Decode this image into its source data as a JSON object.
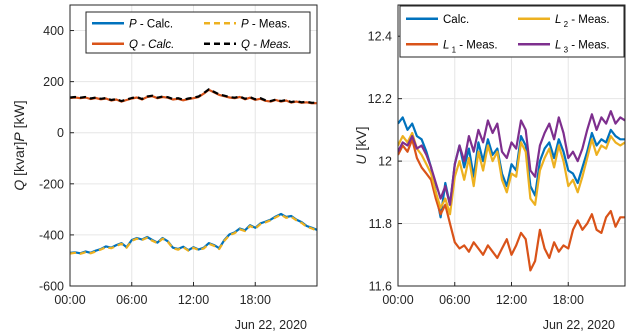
{
  "chart_data": [
    {
      "type": "line",
      "ylabel_parts": [
        "Q",
        "[kvar]",
        "P",
        "[kW]"
      ],
      "ylim": [
        -600,
        500
      ],
      "xlim": [
        0,
        24
      ],
      "yticks": [
        400,
        200,
        0,
        -200,
        -400,
        -600
      ],
      "ytick_labels": [
        "400",
        "200",
        "0",
        "-200",
        "-400",
        "-600"
      ],
      "xticks": [
        0,
        6,
        12,
        18
      ],
      "xtick_labels": [
        "00:00",
        "06:00",
        "12:00",
        "18:00"
      ],
      "date_label": "Jun 22, 2020",
      "grid": true,
      "legend_position": "top",
      "legend": [
        {
          "sym": "P",
          "text": " - Calc.",
          "sym_italic": true,
          "text_italic": false
        },
        {
          "sym": "P",
          "text": " - Meas.",
          "sym_italic": true,
          "text_italic": false
        },
        {
          "sym": "Q",
          "text": " - Calc.",
          "sym_italic": true,
          "text_italic": true
        },
        {
          "sym": "Q",
          "text": " - Meas.",
          "sym_italic": true,
          "text_italic": true
        }
      ],
      "series": [
        {
          "name": "P - Calc.",
          "color": "#0072BD",
          "dash": false,
          "x": [
            0,
            0.5,
            1,
            1.5,
            2,
            2.5,
            3,
            3.5,
            4,
            4.5,
            5,
            5.5,
            6,
            6.5,
            7,
            7.5,
            8,
            8.5,
            9,
            9.5,
            10,
            10.5,
            11,
            11.5,
            12,
            12.5,
            13,
            13.5,
            14,
            14.5,
            15,
            15.5,
            16,
            16.5,
            17,
            17.5,
            18,
            18.5,
            19,
            19.5,
            20,
            20.5,
            21,
            21.5,
            22,
            22.5,
            23,
            23.5,
            24
          ],
          "values": [
            -470,
            -468,
            -472,
            -465,
            -470,
            -462,
            -455,
            -445,
            -450,
            -440,
            -432,
            -448,
            -420,
            -412,
            -418,
            -408,
            -420,
            -430,
            -412,
            -425,
            -450,
            -455,
            -446,
            -460,
            -448,
            -457,
            -450,
            -432,
            -440,
            -452,
            -420,
            -398,
            -390,
            -375,
            -382,
            -362,
            -372,
            -355,
            -348,
            -340,
            -328,
            -318,
            -330,
            -326,
            -340,
            -350,
            -365,
            -372,
            -380
          ]
        },
        {
          "name": "P - Meas.",
          "color": "#EDB120",
          "dash": true,
          "x": [
            0,
            0.5,
            1,
            1.5,
            2,
            2.5,
            3,
            3.5,
            4,
            4.5,
            5,
            5.5,
            6,
            6.5,
            7,
            7.5,
            8,
            8.5,
            9,
            9.5,
            10,
            10.5,
            11,
            11.5,
            12,
            12.5,
            13,
            13.5,
            14,
            14.5,
            15,
            15.5,
            16,
            16.5,
            17,
            17.5,
            18,
            18.5,
            19,
            19.5,
            20,
            20.5,
            21,
            21.5,
            22,
            22.5,
            23,
            23.5,
            24
          ],
          "values": [
            -473,
            -470,
            -474,
            -468,
            -472,
            -465,
            -457,
            -448,
            -452,
            -443,
            -435,
            -450,
            -423,
            -415,
            -420,
            -411,
            -423,
            -432,
            -415,
            -427,
            -452,
            -458,
            -448,
            -462,
            -451,
            -459,
            -453,
            -435,
            -443,
            -455,
            -423,
            -401,
            -393,
            -378,
            -385,
            -365,
            -375,
            -358,
            -351,
            -343,
            -331,
            -321,
            -333,
            -329,
            -343,
            -353,
            -368,
            -375,
            -383
          ]
        },
        {
          "name": "Q - Calc.",
          "color": "#D95319",
          "dash": false,
          "x": [
            0,
            0.5,
            1,
            1.5,
            2,
            2.5,
            3,
            3.5,
            4,
            4.5,
            5,
            5.5,
            6,
            6.5,
            7,
            7.5,
            8,
            8.5,
            9,
            9.5,
            10,
            10.5,
            11,
            11.5,
            12,
            12.5,
            13,
            13.5,
            14,
            14.5,
            15,
            15.5,
            16,
            16.5,
            17,
            17.5,
            18,
            18.5,
            19,
            19.5,
            20,
            20.5,
            21,
            21.5,
            22,
            22.5,
            23,
            23.5,
            24
          ],
          "values": [
            136,
            138,
            135,
            138,
            132,
            136,
            131,
            134,
            126,
            130,
            122,
            128,
            134,
            138,
            130,
            140,
            143,
            135,
            140,
            137,
            130,
            133,
            127,
            132,
            135,
            140,
            153,
            168,
            158,
            148,
            143,
            138,
            135,
            140,
            131,
            137,
            129,
            133,
            125,
            122,
            128,
            122,
            126,
            118,
            122,
            117,
            119,
            115,
            116
          ]
        },
        {
          "name": "Q - Meas.",
          "color": "#000000",
          "dash": true,
          "x": [
            0,
            0.5,
            1,
            1.5,
            2,
            2.5,
            3,
            3.5,
            4,
            4.5,
            5,
            5.5,
            6,
            6.5,
            7,
            7.5,
            8,
            8.5,
            9,
            9.5,
            10,
            10.5,
            11,
            11.5,
            12,
            12.5,
            13,
            13.5,
            14,
            14.5,
            15,
            15.5,
            16,
            16.5,
            17,
            17.5,
            18,
            18.5,
            19,
            19.5,
            20,
            20.5,
            21,
            21.5,
            22,
            22.5,
            23,
            23.5,
            24
          ],
          "values": [
            138,
            140,
            137,
            140,
            134,
            138,
            133,
            136,
            128,
            132,
            124,
            130,
            136,
            140,
            132,
            142,
            145,
            137,
            142,
            139,
            132,
            135,
            129,
            134,
            137,
            142,
            155,
            170,
            160,
            150,
            145,
            140,
            137,
            142,
            133,
            139,
            131,
            135,
            127,
            124,
            130,
            124,
            128,
            120,
            124,
            119,
            121,
            117,
            118
          ]
        }
      ]
    },
    {
      "type": "line",
      "ylabel_parts": [
        "U",
        "[kV]"
      ],
      "ylim": [
        11.6,
        12.5
      ],
      "xlim": [
        0,
        24
      ],
      "yticks": [
        12.4,
        12.2,
        12,
        11.8,
        11.6
      ],
      "ytick_labels": [
        "12.4",
        "12.2",
        "12",
        "11.8",
        "11.6"
      ],
      "xticks": [
        0,
        6,
        12,
        18
      ],
      "xtick_labels": [
        "00:00",
        "06:00",
        "12:00",
        "18:00"
      ],
      "date_label": "Jun 22, 2020",
      "grid": true,
      "legend_position": "top",
      "legend": [
        {
          "sym": "",
          "sub": "",
          "text": "Calc.",
          "color": "#0072BD"
        },
        {
          "sym": "L",
          "sub": "2",
          "text": " - Meas.",
          "color": "#EDB120"
        },
        {
          "sym": "L",
          "sub": "1",
          "text": " - Meas.",
          "color": "#D95319"
        },
        {
          "sym": "L",
          "sub": "3",
          "text": " - Meas.",
          "color": "#7E2F8E"
        }
      ],
      "series": [
        {
          "name": "Calc.",
          "color": "#0072BD",
          "dash": false,
          "x": [
            0,
            0.5,
            1,
            1.5,
            2,
            2.5,
            3,
            3.5,
            4,
            4.5,
            5,
            5.5,
            6,
            6.5,
            7,
            7.5,
            8,
            8.5,
            9,
            9.5,
            10,
            10.5,
            11,
            11.5,
            12,
            12.5,
            13,
            13.5,
            14,
            14.5,
            15,
            15.5,
            16,
            16.5,
            17,
            17.5,
            18,
            18.5,
            19,
            19.5,
            20,
            20.5,
            21,
            21.5,
            22,
            22.5,
            23,
            23.5,
            24
          ],
          "values": [
            12.12,
            12.14,
            12.1,
            12.12,
            12.08,
            12.07,
            12.03,
            11.98,
            11.9,
            11.82,
            11.93,
            11.86,
            11.99,
            12.05,
            11.98,
            12.04,
            11.95,
            12.06,
            12.0,
            12.07,
            12.02,
            12.04,
            11.96,
            11.92,
            11.99,
            11.97,
            12.08,
            12.05,
            11.92,
            11.89,
            12.0,
            12.04,
            12.06,
            12.01,
            12.07,
            12.03,
            11.97,
            11.96,
            11.93,
            11.98,
            12.03,
            12.09,
            12.05,
            12.07,
            12.06,
            12.1,
            12.08,
            12.07,
            12.07
          ]
        },
        {
          "name": "L1 - Meas.",
          "color": "#D95319",
          "dash": false,
          "x": [
            0,
            0.5,
            1,
            1.5,
            2,
            2.5,
            3,
            3.5,
            4,
            4.5,
            5,
            5.5,
            6,
            6.5,
            7,
            7.5,
            8,
            8.5,
            9,
            9.5,
            10,
            10.5,
            11,
            11.5,
            12,
            12.5,
            13,
            13.5,
            14,
            14.5,
            15,
            15.5,
            16,
            16.5,
            17,
            17.5,
            18,
            18.5,
            19,
            19.5,
            20,
            20.5,
            21,
            21.5,
            22,
            22.5,
            23,
            23.5,
            24
          ],
          "values": [
            12.02,
            12.05,
            12.03,
            12.07,
            12.01,
            11.98,
            11.96,
            11.94,
            11.88,
            11.83,
            11.86,
            11.8,
            11.74,
            11.72,
            11.73,
            11.71,
            11.74,
            11.72,
            11.7,
            11.73,
            11.71,
            11.69,
            11.72,
            11.75,
            11.7,
            11.73,
            11.77,
            11.75,
            11.65,
            11.68,
            11.78,
            11.72,
            11.69,
            11.74,
            11.71,
            11.73,
            11.72,
            11.78,
            11.81,
            11.78,
            11.8,
            11.83,
            11.78,
            11.77,
            11.82,
            11.84,
            11.79,
            11.82,
            11.82
          ]
        },
        {
          "name": "L2 - Meas.",
          "color": "#EDB120",
          "dash": false,
          "x": [
            0,
            0.5,
            1,
            1.5,
            2,
            2.5,
            3,
            3.5,
            4,
            4.5,
            5,
            5.5,
            6,
            6.5,
            7,
            7.5,
            8,
            8.5,
            9,
            9.5,
            10,
            10.5,
            11,
            11.5,
            12,
            12.5,
            13,
            13.5,
            14,
            14.5,
            15,
            15.5,
            16,
            16.5,
            17,
            17.5,
            18,
            18.5,
            19,
            19.5,
            20,
            20.5,
            21,
            21.5,
            22,
            22.5,
            23,
            23.5,
            24
          ],
          "values": [
            12.05,
            12.08,
            12.06,
            12.09,
            12.04,
            12.02,
            11.99,
            11.96,
            11.9,
            11.85,
            11.88,
            11.83,
            11.95,
            12.0,
            11.94,
            12.01,
            11.92,
            12.03,
            11.97,
            12.05,
            12.0,
            12.03,
            11.94,
            11.9,
            11.96,
            11.95,
            12.06,
            12.03,
            11.88,
            11.86,
            11.97,
            12.01,
            12.04,
            11.98,
            12.05,
            12.0,
            11.92,
            11.94,
            11.9,
            11.95,
            12.01,
            12.07,
            12.02,
            12.05,
            12.04,
            12.08,
            12.06,
            12.05,
            12.06
          ]
        },
        {
          "name": "L3 - Meas.",
          "color": "#7E2F8E",
          "dash": false,
          "x": [
            0,
            0.5,
            1,
            1.5,
            2,
            2.5,
            3,
            3.5,
            4,
            4.5,
            5,
            5.5,
            6,
            6.5,
            7,
            7.5,
            8,
            8.5,
            9,
            9.5,
            10,
            10.5,
            11,
            11.5,
            12,
            12.5,
            13,
            13.5,
            14,
            14.5,
            15,
            15.5,
            16,
            16.5,
            17,
            17.5,
            18,
            18.5,
            19,
            19.5,
            20,
            20.5,
            21,
            21.5,
            22,
            22.5,
            23,
            23.5,
            24
          ],
          "values": [
            12.03,
            12.06,
            12.05,
            12.08,
            12.04,
            12.05,
            12.02,
            11.98,
            11.93,
            11.88,
            11.92,
            11.86,
            11.99,
            12.05,
            12.0,
            12.08,
            12.03,
            12.1,
            12.06,
            12.13,
            12.09,
            12.12,
            12.03,
            12.01,
            12.06,
            12.04,
            12.13,
            12.1,
            11.97,
            11.95,
            12.05,
            12.09,
            12.12,
            12.07,
            12.14,
            12.09,
            12.01,
            12.03,
            12.0,
            12.04,
            12.1,
            12.15,
            12.1,
            12.14,
            12.12,
            12.16,
            12.12,
            12.14,
            12.13
          ]
        }
      ]
    }
  ]
}
